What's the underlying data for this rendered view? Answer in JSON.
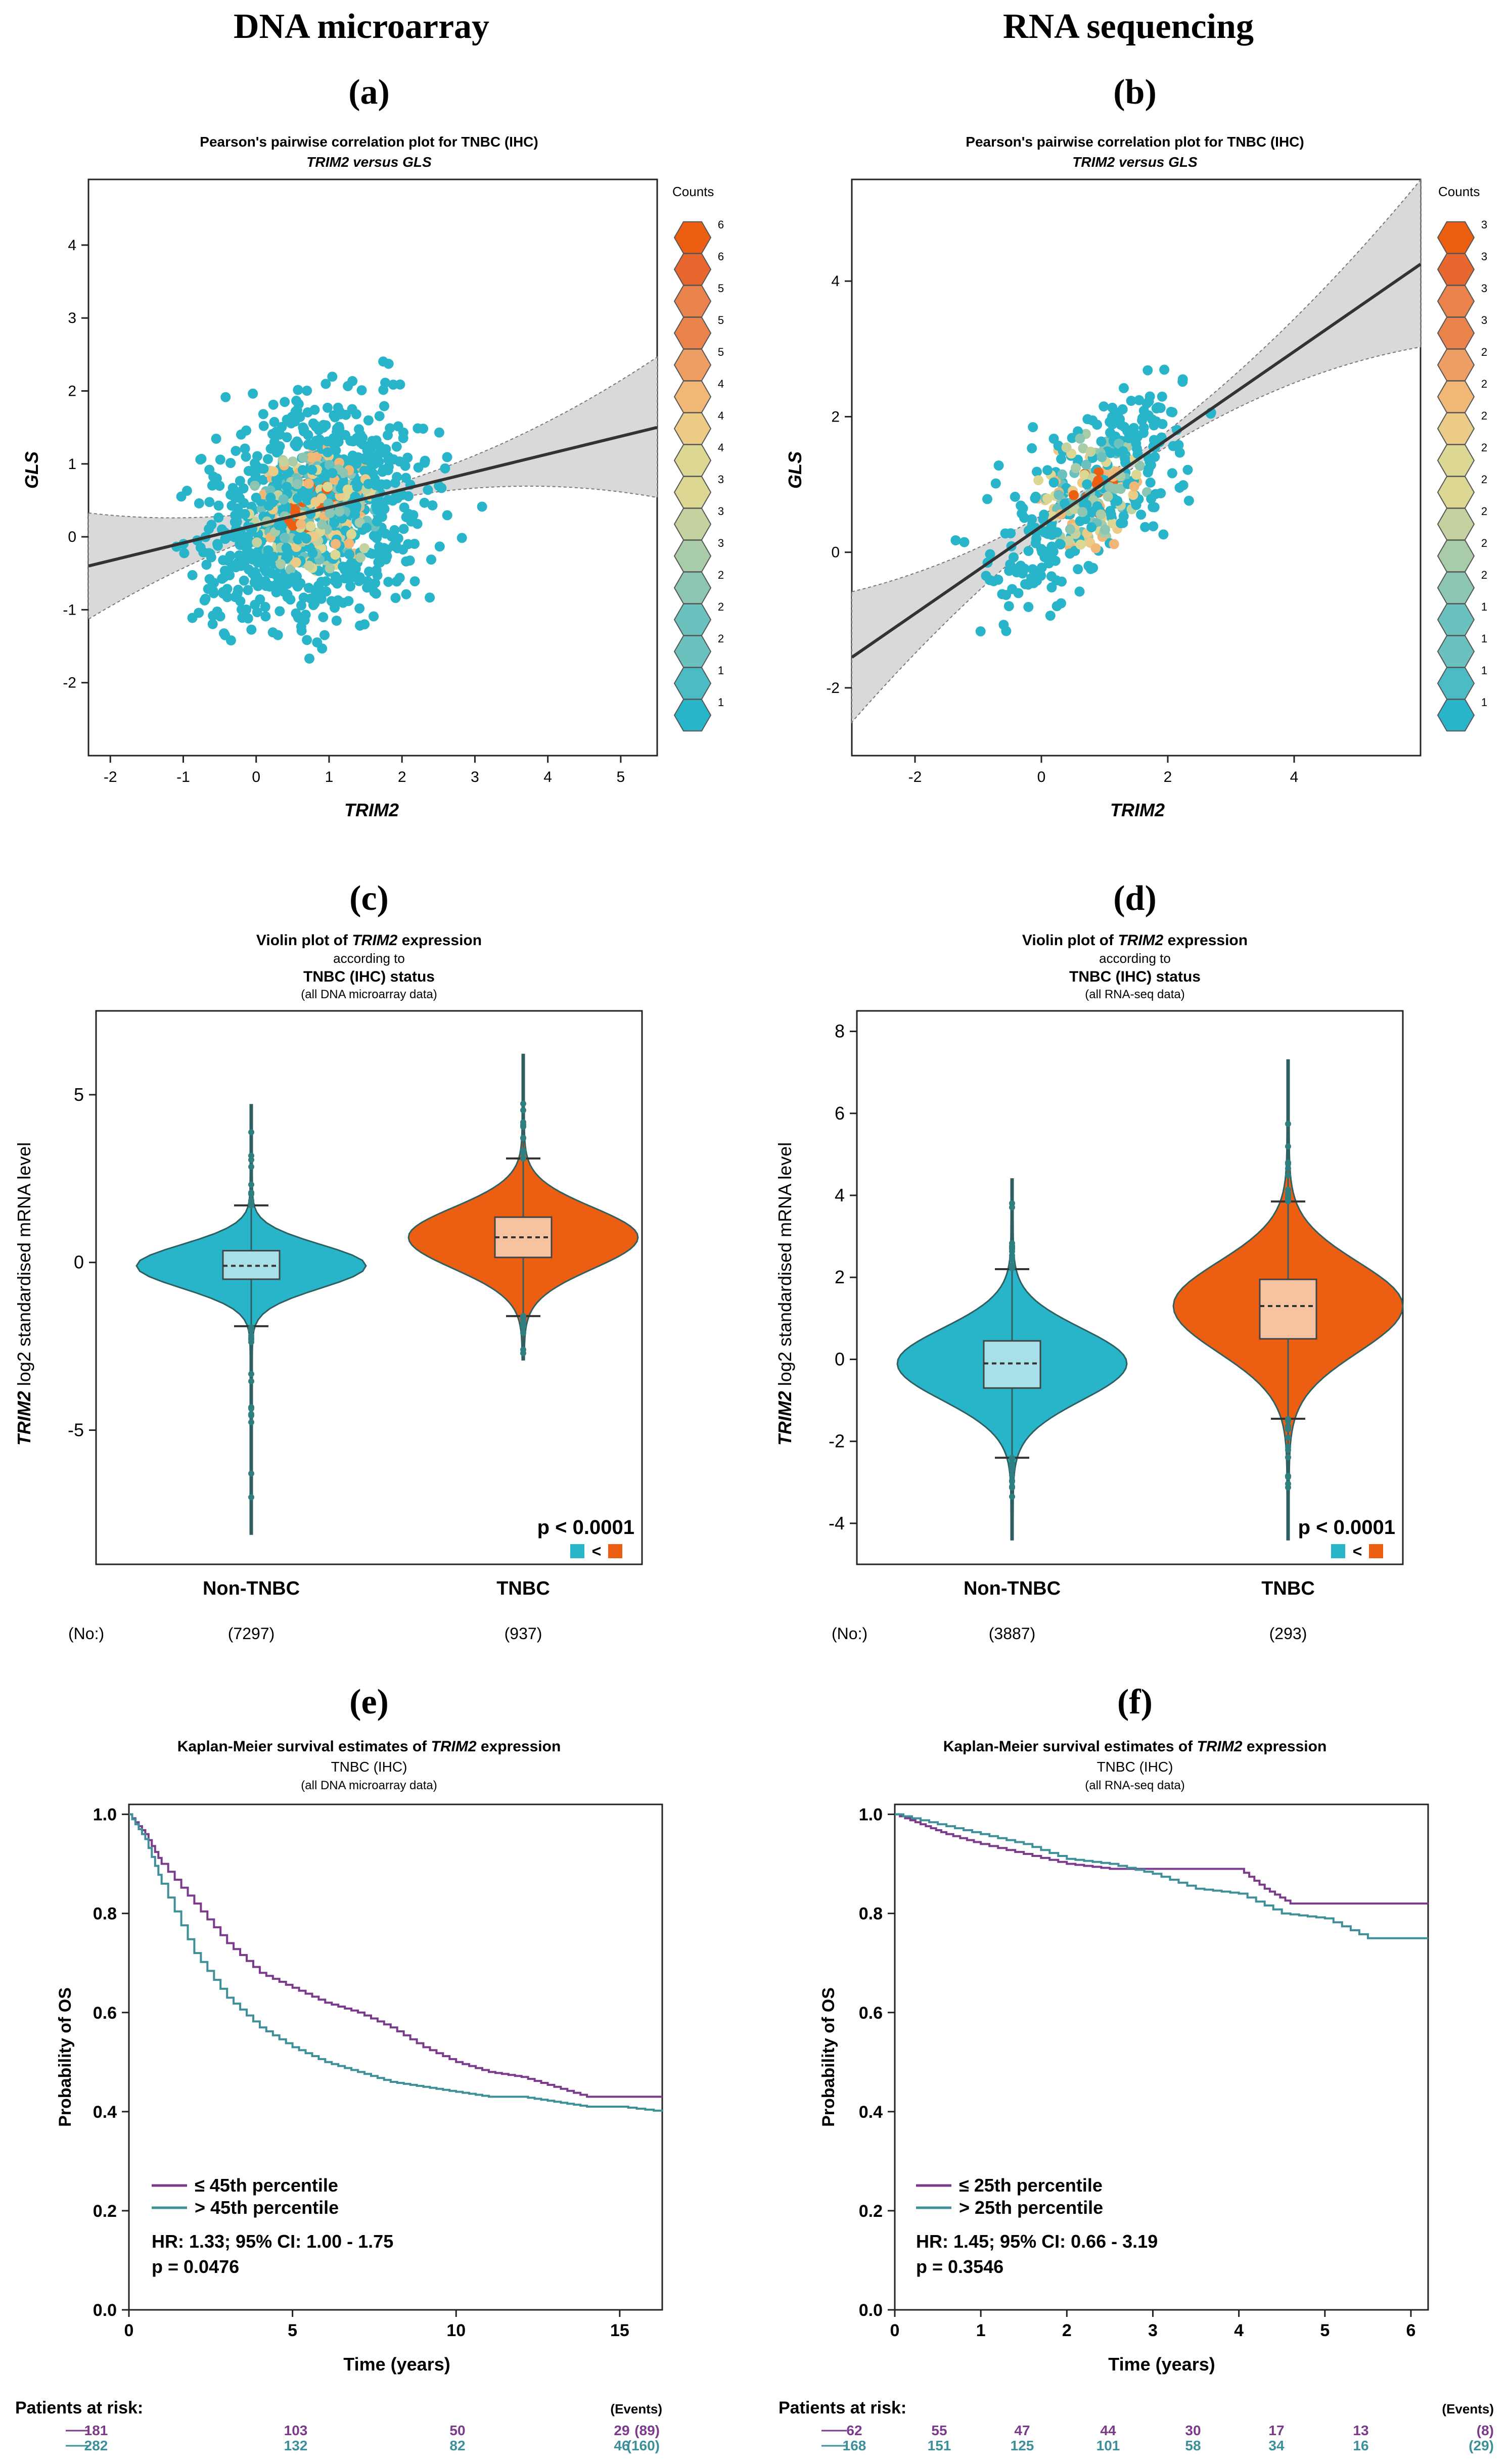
{
  "headers": {
    "left": "DNA microarray",
    "right": "RNA sequencing"
  },
  "panels": {
    "a": "(a)",
    "b": "(b)",
    "c": "(c)",
    "d": "(d)",
    "e": "(e)",
    "f": "(f)"
  },
  "colors": {
    "teal": "#29b5c9",
    "orange": "#ec5f13",
    "purple": "#7b3a8c",
    "km_teal": "#3d8f9a",
    "box_light": "#a8e0ea",
    "box_orange": "#f7c2a0"
  },
  "scatter_a": {
    "title": "Pearson's pairwise correlation plot for TNBC (IHC)",
    "subtitle": "TRIM2 versus GLS",
    "xlabel": "TRIM2",
    "ylabel": "GLS",
    "xticks": [
      "-2",
      "-1",
      "0",
      "1",
      "2",
      "3",
      "4",
      "5"
    ],
    "yticks": [
      "4",
      "3",
      "2",
      "1",
      "0",
      "-1",
      "-2"
    ],
    "legend_title": "Counts",
    "legend_counts": [
      "6",
      "6",
      "5",
      "5",
      "5",
      "4",
      "4",
      "4",
      "3",
      "3",
      "3",
      "2",
      "2",
      "2",
      "1",
      "1"
    ],
    "chart_data": {
      "type": "scatter",
      "x_range": [
        -2.3,
        5.5
      ],
      "y_range": [
        -3,
        4.9
      ],
      "point_count_approx": 937,
      "regression": {
        "x": [
          -2.3,
          5.5
        ],
        "y": [
          -0.4,
          1.5
        ]
      },
      "count_range": [
        1,
        6
      ]
    }
  },
  "scatter_b": {
    "title": "Pearson's pairwise correlation plot for TNBC (IHC)",
    "subtitle": "TRIM2 versus GLS",
    "xlabel": "TRIM2",
    "ylabel": "GLS",
    "xticks": [
      "-2",
      "0",
      "2",
      "4"
    ],
    "yticks": [
      "4",
      "2",
      "0",
      "-2"
    ],
    "legend_title": "Counts",
    "legend_counts": [
      "3",
      "3",
      "3",
      "3",
      "2",
      "2",
      "2",
      "2",
      "2",
      "2",
      "2",
      "2",
      "1",
      "1",
      "1",
      "1"
    ],
    "chart_data": {
      "type": "scatter",
      "x_range": [
        -3,
        6
      ],
      "y_range": [
        -3,
        5.5
      ],
      "point_count_approx": 293,
      "regression": {
        "x": [
          -3,
          6
        ],
        "y": [
          -1.55,
          4.25
        ]
      },
      "count_range": [
        1,
        3
      ]
    }
  },
  "violin_c": {
    "title_pre": "Violin plot of ",
    "title_gene": "TRIM2",
    "title_post": " expression",
    "line2": "according to",
    "line3": "TNBC (IHC) status",
    "line4": "(all DNA microarray data)",
    "ylabel_gene": "TRIM2",
    "ylabel_rest": " log2 standardised mRNA level",
    "yticks": [
      "5",
      "0",
      "-5"
    ],
    "groups": [
      "Non-TNBC",
      "TNBC"
    ],
    "n_label": "(No:)",
    "ns": [
      "(7297)",
      "(937)"
    ],
    "p_text": "p < 0.0001",
    "cmp_symbol": "<",
    "chart_data": {
      "type": "violin",
      "ylim": [
        -9,
        7.5
      ],
      "groups": [
        {
          "name": "Non-TNBC",
          "n": 7297,
          "q1": -0.5,
          "median": -0.1,
          "q3": 0.35,
          "whisker_low": -1.9,
          "whisker_high": 1.7,
          "min": -8.1,
          "max": 4.7
        },
        {
          "name": "TNBC",
          "n": 937,
          "q1": 0.15,
          "median": 0.75,
          "q3": 1.35,
          "whisker_low": -1.6,
          "whisker_high": 3.1,
          "min": -2.9,
          "max": 6.2
        }
      ]
    }
  },
  "violin_d": {
    "title_pre": "Violin plot of ",
    "title_gene": "TRIM2",
    "title_post": " expression",
    "line2": "according to",
    "line3": "TNBC (IHC) status",
    "line4": "(all RNA-seq data)",
    "ylabel_gene": "TRIM2",
    "ylabel_rest": " log2 standardised mRNA level",
    "yticks": [
      "8",
      "6",
      "4",
      "2",
      "0",
      "-2",
      "-4"
    ],
    "groups": [
      "Non-TNBC",
      "TNBC"
    ],
    "n_label": "(No:)",
    "ns": [
      "(3887)",
      "(293)"
    ],
    "p_text": "p < 0.0001",
    "cmp_symbol": "<",
    "chart_data": {
      "type": "violin",
      "ylim": [
        -5,
        8.5
      ],
      "groups": [
        {
          "name": "Non-TNBC",
          "n": 3887,
          "q1": -0.7,
          "median": -0.1,
          "q3": 0.45,
          "whisker_low": -2.4,
          "whisker_high": 2.2,
          "min": -4.4,
          "max": 4.4
        },
        {
          "name": "TNBC",
          "n": 293,
          "q1": 0.5,
          "median": 1.3,
          "q3": 1.95,
          "whisker_low": -1.45,
          "whisker_high": 3.85,
          "min": -4.4,
          "max": 7.3
        }
      ]
    }
  },
  "km_e": {
    "title_pre": "Kaplan-Meier survival estimates of ",
    "title_gene": "TRIM2",
    "title_post": " expression",
    "line2": "TNBC (IHC)",
    "line3": "(all DNA microarray data)",
    "ylabel": "Probability of OS",
    "xlabel": "Time (years)",
    "xticks": [
      "0",
      "5",
      "10",
      "15"
    ],
    "yticks": [
      "1.0",
      "0.8",
      "0.6",
      "0.4",
      "0.2",
      "0.0"
    ],
    "legend": [
      "≤ 45th percentile",
      "> 45th percentile"
    ],
    "hr": "HR: 1.33; 95% CI: 1.00 - 1.75",
    "p": "p = 0.0476",
    "risk_title": "Patients at risk:",
    "events_label": "(Events)",
    "risk_low": [
      "181",
      "103",
      "50",
      "29",
      "(89)"
    ],
    "risk_high": [
      "282",
      "132",
      "82",
      "46",
      "(160)"
    ],
    "chart_data": {
      "type": "line",
      "xlim": [
        0,
        16.3
      ],
      "ylim": [
        0,
        1.02
      ],
      "series": [
        {
          "name": "≤ 45th percentile",
          "x": [
            0,
            0.5,
            1,
            2,
            3,
            4,
            5,
            6,
            7,
            8,
            9,
            10,
            11,
            12,
            13,
            14,
            15,
            16.3
          ],
          "y": [
            1,
            0.96,
            0.9,
            0.82,
            0.74,
            0.68,
            0.65,
            0.62,
            0.6,
            0.57,
            0.53,
            0.5,
            0.48,
            0.47,
            0.45,
            0.43,
            0.43,
            0.43
          ]
        },
        {
          "name": "> 45th percentile",
          "x": [
            0,
            0.5,
            1,
            2,
            3,
            4,
            5,
            6,
            7,
            8,
            9,
            10,
            11,
            12,
            13,
            14,
            15,
            16.3
          ],
          "y": [
            1,
            0.95,
            0.86,
            0.72,
            0.63,
            0.57,
            0.53,
            0.5,
            0.48,
            0.46,
            0.45,
            0.44,
            0.43,
            0.43,
            0.42,
            0.41,
            0.41,
            0.4
          ]
        }
      ]
    }
  },
  "km_f": {
    "title_pre": "Kaplan-Meier survival estimates of ",
    "title_gene": "TRIM2",
    "title_post": " expression",
    "line2": "TNBC (IHC)",
    "line3": "(all RNA-seq data)",
    "ylabel": "Probability of OS",
    "xlabel": "Time (years)",
    "xticks": [
      "0",
      "1",
      "2",
      "3",
      "4",
      "5",
      "6"
    ],
    "yticks": [
      "1.0",
      "0.8",
      "0.6",
      "0.4",
      "0.2",
      "0.0"
    ],
    "legend": [
      "≤ 25th percentile",
      "> 25th percentile"
    ],
    "hr": "HR: 1.45; 95% CI: 0.66 - 3.19",
    "p": "p = 0.3546",
    "risk_title": "Patients at risk:",
    "events_label": "(Events)",
    "risk_low": [
      "62",
      "55",
      "47",
      "44",
      "30",
      "17",
      "13",
      "(8)"
    ],
    "risk_high": [
      "168",
      "151",
      "125",
      "101",
      "58",
      "34",
      "16",
      "(29)"
    ],
    "chart_data": {
      "type": "line",
      "xlim": [
        0,
        6.2
      ],
      "ylim": [
        0,
        1.02
      ],
      "series": [
        {
          "name": "≤ 25th percentile",
          "x": [
            0,
            0.3,
            0.6,
            1,
            1.5,
            2,
            2.5,
            3,
            3.5,
            4,
            4.3,
            4.6,
            5,
            5.5,
            6.2
          ],
          "y": [
            1,
            0.98,
            0.96,
            0.94,
            0.92,
            0.9,
            0.89,
            0.89,
            0.89,
            0.89,
            0.85,
            0.82,
            0.82,
            0.82,
            0.82
          ]
        },
        {
          "name": "> 25th percentile",
          "x": [
            0,
            0.5,
            1,
            1.5,
            2,
            2.5,
            3,
            3.5,
            4,
            4.5,
            5,
            5.5,
            6.2
          ],
          "y": [
            1,
            0.98,
            0.96,
            0.94,
            0.91,
            0.9,
            0.88,
            0.85,
            0.84,
            0.8,
            0.79,
            0.75,
            0.75
          ]
        }
      ]
    }
  }
}
